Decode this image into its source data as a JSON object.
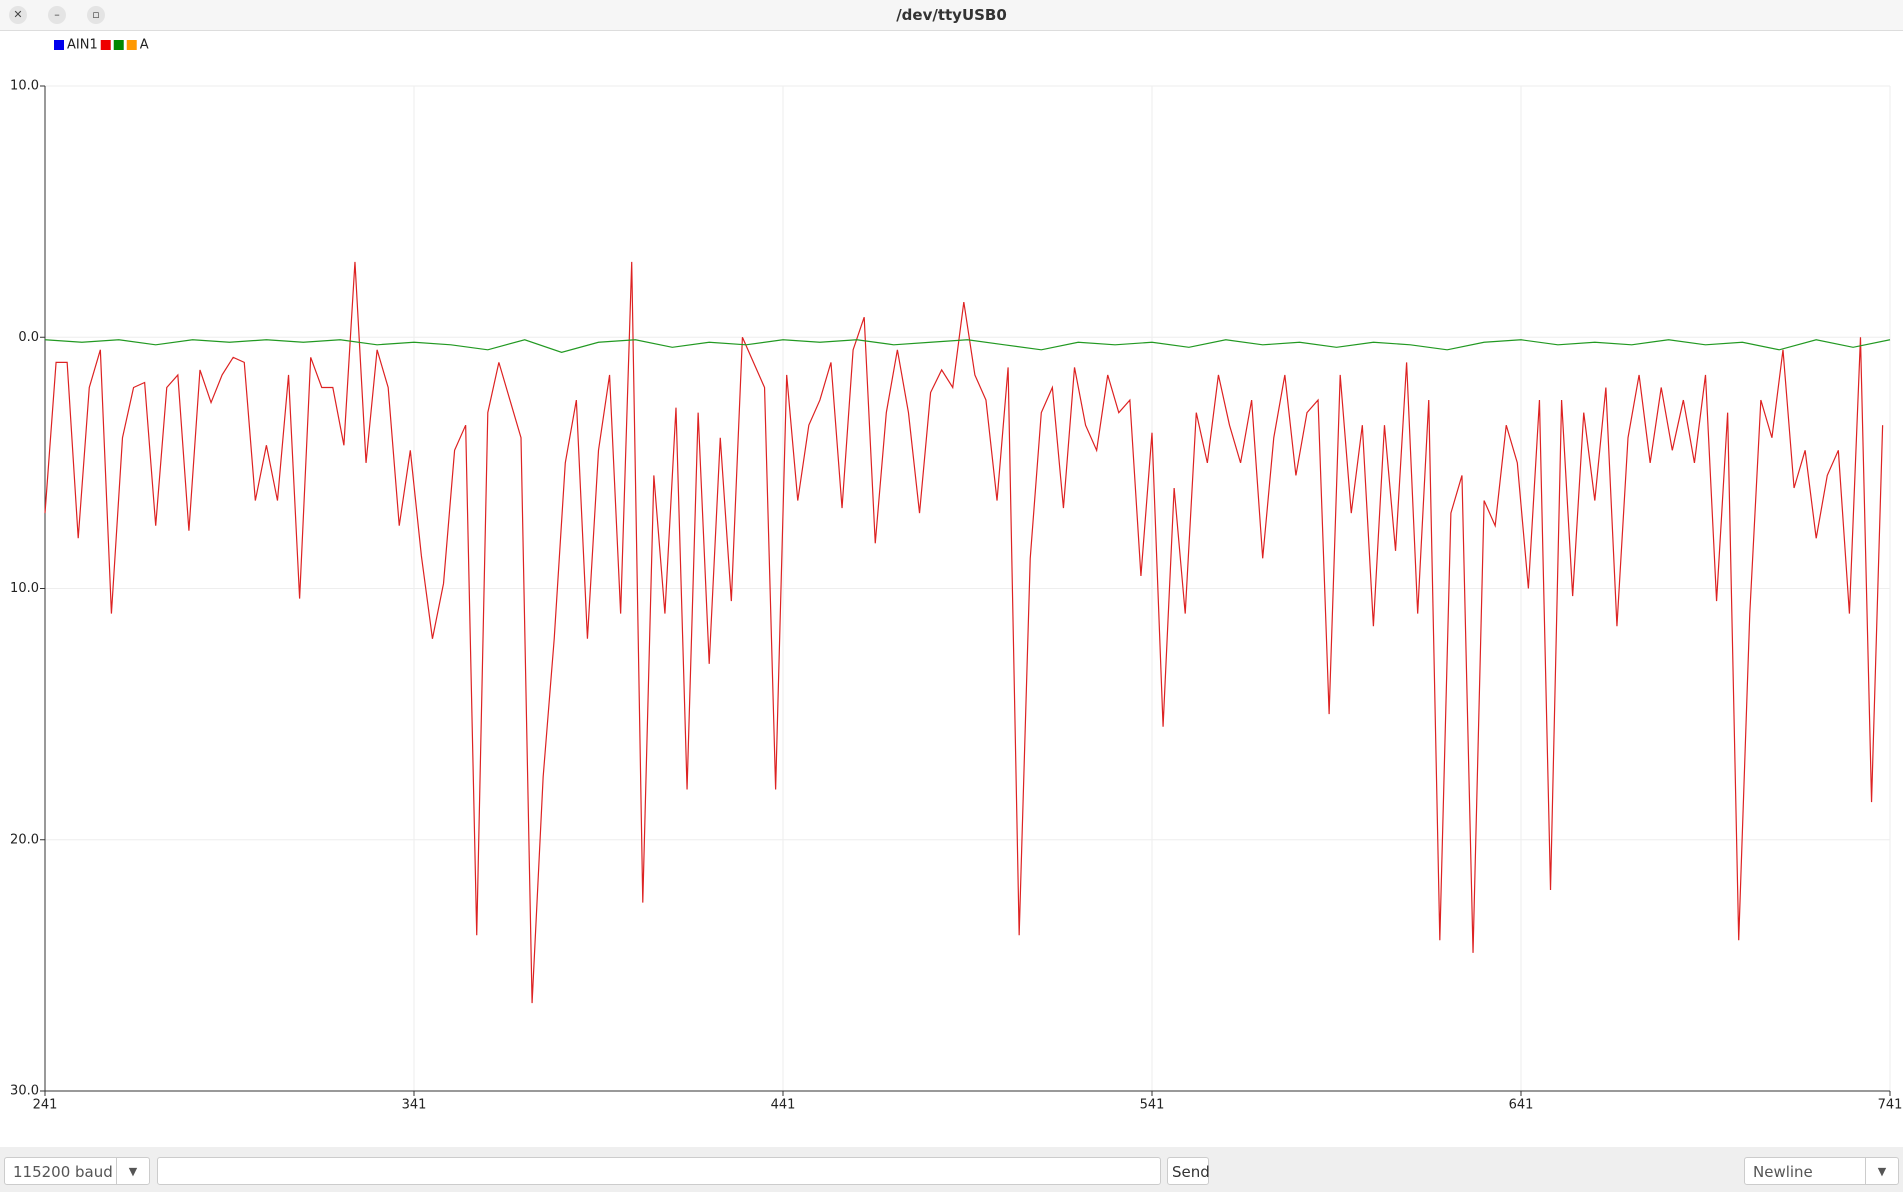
{
  "window": {
    "title": "/dev/ttyUSB0"
  },
  "chart_data": {
    "type": "line",
    "legend": [
      {
        "name": "AIN1",
        "color": "#0000ee"
      },
      {
        "color": "#ee0000"
      },
      {
        "color": "#008800"
      },
      {
        "name": "A",
        "color": "#ff9900"
      }
    ],
    "xlim": [
      241,
      741
    ],
    "xticks": [
      241,
      341,
      441,
      541,
      641,
      741
    ],
    "ylim": [
      -30,
      10
    ],
    "yticks": [
      {
        "value": 10,
        "label": "10.0"
      },
      {
        "value": 0,
        "label": "0.0"
      },
      {
        "value": -10,
        "label": "10.0"
      },
      {
        "value": -20,
        "label": "20.0"
      },
      {
        "value": -30,
        "label": "30.0"
      }
    ],
    "grid": true,
    "series": [
      {
        "color": "#dd2222",
        "x": [
          241,
          244,
          247,
          250,
          253,
          256,
          259,
          262,
          265,
          268,
          271,
          274,
          277,
          280,
          283,
          286,
          289,
          292,
          295,
          298,
          301,
          304,
          307,
          310,
          313,
          316,
          319,
          322,
          325,
          328,
          331,
          334,
          337,
          340,
          343,
          346,
          349,
          352,
          355,
          358,
          361,
          364,
          367,
          370,
          373,
          376,
          379,
          382,
          385,
          388,
          391,
          394,
          397,
          400,
          403,
          406,
          409,
          412,
          415,
          418,
          421,
          424,
          427,
          430,
          433,
          436,
          439,
          442,
          445,
          448,
          451,
          454,
          457,
          460,
          463,
          466,
          469,
          472,
          475,
          478,
          481,
          484,
          487,
          490,
          493,
          496,
          499,
          502,
          505,
          508,
          511,
          514,
          517,
          520,
          523,
          526,
          529,
          532,
          535,
          538,
          541,
          544,
          547,
          550,
          553,
          556,
          559,
          562,
          565,
          568,
          571,
          574,
          577,
          580,
          583,
          586,
          589,
          592,
          595,
          598,
          601,
          604,
          607,
          610,
          613,
          616,
          619,
          622,
          625,
          628,
          631,
          634,
          637,
          640,
          643,
          646,
          649,
          652,
          655,
          658,
          661,
          664,
          667,
          670,
          673,
          676,
          679,
          682,
          685,
          688,
          691,
          694,
          697,
          700,
          703,
          706,
          709,
          712,
          715,
          718,
          721,
          724,
          727,
          730,
          733,
          736,
          739
        ],
        "values": [
          -7,
          -1,
          -1,
          -8,
          -2,
          -0.5,
          -11,
          -4,
          -2,
          -1.8,
          -7.5,
          -2,
          -1.5,
          -7.7,
          -1.3,
          -2.6,
          -1.5,
          -0.8,
          -1,
          -6.5,
          -4.3,
          -6.5,
          -1.5,
          -10.4,
          -0.8,
          -2,
          -2,
          -4.3,
          3,
          -5,
          -0.5,
          -2,
          -7.5,
          -4.5,
          -8.7,
          -12,
          -9.8,
          -4.5,
          -3.5,
          -23.8,
          -3,
          -1,
          -2.5,
          -4,
          -26.5,
          -17.5,
          -12,
          -5,
          -2.5,
          -12,
          -4.5,
          -1.5,
          -11,
          3,
          -22.5,
          -5.5,
          -11,
          -2.8,
          -18,
          -3,
          -13,
          -4,
          -10.5,
          0,
          -1,
          -2,
          -18,
          -1.5,
          -6.5,
          -3.5,
          -2.5,
          -1,
          -6.8,
          -0.5,
          0.8,
          -8.2,
          -3,
          -0.5,
          -3,
          -7,
          -2.2,
          -1.3,
          -2,
          1.4,
          -1.5,
          -2.5,
          -6.5,
          -1.2,
          -23.8,
          -8.8,
          -3,
          -2,
          -6.8,
          -1.2,
          -3.5,
          -4.5,
          -1.5,
          -3,
          -2.5,
          -9.5,
          -3.8,
          -15.5,
          -6,
          -11,
          -3,
          -5,
          -1.5,
          -3.5,
          -5,
          -2.5,
          -8.8,
          -4,
          -1.5,
          -5.5,
          -3,
          -2.5,
          -15,
          -1.5,
          -7,
          -3.5,
          -11.5,
          -3.5,
          -8.5,
          -1,
          -11,
          -2.5,
          -24,
          -7,
          -5.5,
          -24.5,
          -6.5,
          -7.5,
          -3.5,
          -5,
          -10,
          -2.5,
          -22,
          -2.5,
          -10.3,
          -3,
          -6.5,
          -2,
          -11.5,
          -4,
          -1.5,
          -5,
          -2,
          -4.5,
          -2.5,
          -5,
          -1.5,
          -10.5,
          -3,
          -24,
          -11,
          -2.5,
          -4,
          -0.5,
          -6,
          -4.5,
          -8,
          -5.5,
          -4.5,
          -11,
          0,
          -18.5,
          -3.5
        ]
      },
      {
        "color": "#229922",
        "x": [
          241,
          251,
          261,
          271,
          281,
          291,
          301,
          311,
          321,
          331,
          341,
          351,
          361,
          371,
          381,
          391,
          401,
          411,
          421,
          431,
          441,
          451,
          461,
          471,
          481,
          491,
          501,
          511,
          521,
          531,
          541,
          551,
          561,
          571,
          581,
          591,
          601,
          611,
          621,
          631,
          641,
          651,
          661,
          671,
          681,
          691,
          701,
          711,
          721,
          731,
          741
        ],
        "values": [
          -0.1,
          -0.2,
          -0.1,
          -0.3,
          -0.1,
          -0.2,
          -0.1,
          -0.2,
          -0.1,
          -0.3,
          -0.2,
          -0.3,
          -0.5,
          -0.1,
          -0.6,
          -0.2,
          -0.1,
          -0.4,
          -0.2,
          -0.3,
          -0.1,
          -0.2,
          -0.1,
          -0.3,
          -0.2,
          -0.1,
          -0.3,
          -0.5,
          -0.2,
          -0.3,
          -0.2,
          -0.4,
          -0.1,
          -0.3,
          -0.2,
          -0.4,
          -0.2,
          -0.3,
          -0.5,
          -0.2,
          -0.1,
          -0.3,
          -0.2,
          -0.3,
          -0.1,
          -0.3,
          -0.2,
          -0.5,
          -0.1,
          -0.4,
          -0.1
        ]
      }
    ]
  },
  "controls": {
    "baud": "115200 baud",
    "send": "Send",
    "line_ending": "Newline"
  }
}
